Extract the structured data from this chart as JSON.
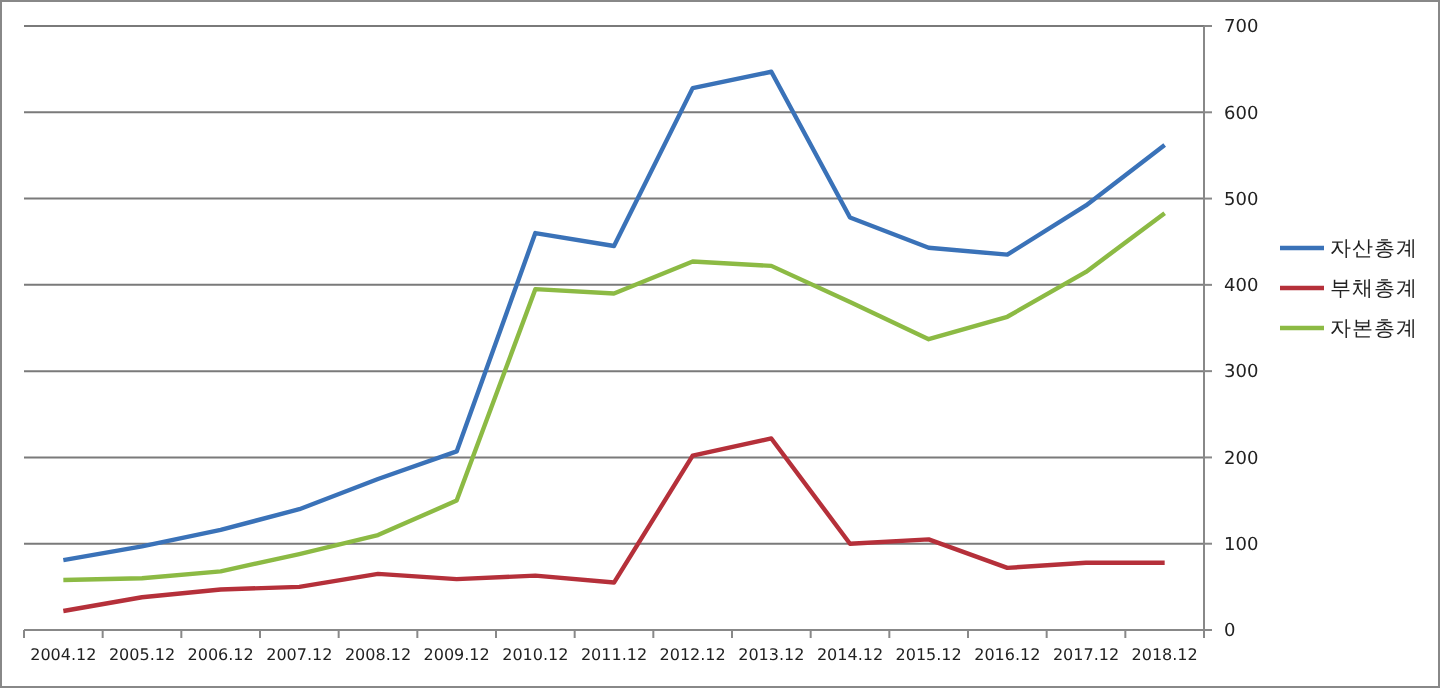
{
  "chart_data": {
    "type": "line",
    "categories": [
      "2004.12",
      "2005.12",
      "2006.12",
      "2007.12",
      "2008.12",
      "2009.12",
      "2010.12",
      "2011.12",
      "2012.12",
      "2013.12",
      "2014.12",
      "2015.12",
      "2016.12",
      "2017.12",
      "2018.12"
    ],
    "series": [
      {
        "name": "자산총계",
        "color": "#3a72b8",
        "values": [
          81,
          97,
          116,
          140,
          175,
          207,
          460,
          445,
          628,
          647,
          478,
          443,
          435,
          492,
          562
        ]
      },
      {
        "name": "부채총계",
        "color": "#b5303a",
        "values": [
          22,
          38,
          47,
          50,
          65,
          59,
          63,
          55,
          202,
          222,
          100,
          105,
          72,
          78,
          78
        ]
      },
      {
        "name": "자본총계",
        "color": "#8cba44",
        "values": [
          58,
          60,
          68,
          88,
          110,
          150,
          395,
          390,
          427,
          422,
          380,
          337,
          363,
          415,
          483
        ]
      }
    ],
    "ylim": [
      0,
      700
    ],
    "yticks": [
      0,
      100,
      200,
      300,
      400,
      500,
      600,
      700
    ],
    "grid": "y",
    "legend": "right",
    "marker": "none",
    "line_style": "solid"
  }
}
